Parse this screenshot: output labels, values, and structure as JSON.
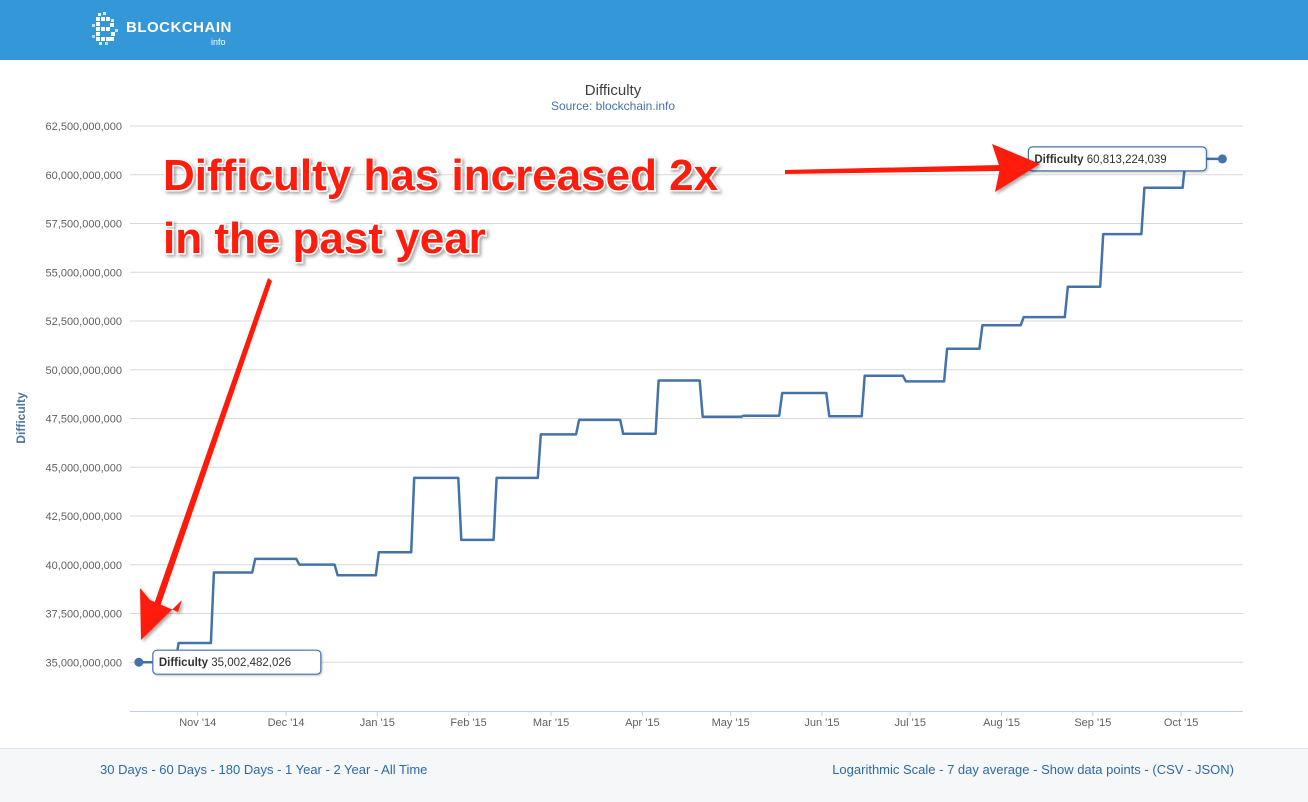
{
  "header": {
    "logo_text": "BLOCKCHAIN",
    "logo_sub": "info"
  },
  "colors": {
    "header_bg": "#3498d8",
    "series": "#4572a7",
    "annotation": "#ff1a0a"
  },
  "chart_data": {
    "type": "line",
    "title": "Difficulty",
    "subtitle": "Source: blockchain.info",
    "ylabel": "Difficulty",
    "xlabel": "",
    "ylim": [
      32500000000,
      62500000000
    ],
    "yticks": [
      35000000000,
      37500000000,
      40000000000,
      42500000000,
      45000000000,
      47500000000,
      50000000000,
      52500000000,
      55000000000,
      57500000000,
      60000000000,
      62500000000
    ],
    "ytick_labels": [
      "35,000,000,000",
      "37,500,000,000",
      "40,000,000,000",
      "42,500,000,000",
      "45,000,000,000",
      "47,500,000,000",
      "50,000,000,000",
      "52,500,000,000",
      "55,000,000,000",
      "57,500,000,000",
      "60,000,000,000",
      "62,500,000,000"
    ],
    "xlim": [
      "2014-10-09",
      "2015-10-22"
    ],
    "xticks": [
      "2014-11-01",
      "2014-12-01",
      "2015-01-01",
      "2015-02-01",
      "2015-03-01",
      "2015-04-01",
      "2015-05-01",
      "2015-06-01",
      "2015-07-01",
      "2015-08-01",
      "2015-09-01",
      "2015-10-01"
    ],
    "xtick_labels": [
      "Nov '14",
      "Dec '14",
      "Jan '15",
      "Feb '15",
      "Mar '15",
      "Apr '15",
      "May '15",
      "Jun '15",
      "Jul '15",
      "Aug '15",
      "Sep '15",
      "Oct '15"
    ],
    "grid": true,
    "series": [
      {
        "name": "Difficulty",
        "step": true,
        "points": [
          [
            "2014-10-12",
            35002482026
          ],
          [
            "2014-10-25",
            35985640265
          ],
          [
            "2014-11-06",
            39603666252
          ],
          [
            "2014-11-20",
            40300030238
          ],
          [
            "2014-12-05",
            40007470271
          ],
          [
            "2014-12-18",
            39457671307
          ],
          [
            "2015-01-01",
            40640955016
          ],
          [
            "2015-01-13",
            44455415962
          ],
          [
            "2015-01-29",
            41272873894
          ],
          [
            "2015-02-10",
            44455415962
          ],
          [
            "2015-02-25",
            46684376316
          ],
          [
            "2015-03-10",
            47427554950
          ],
          [
            "2015-03-25",
            46717549645
          ],
          [
            "2015-04-06",
            49446390688
          ],
          [
            "2015-04-21",
            47589591153
          ],
          [
            "2015-05-05",
            47643398017
          ],
          [
            "2015-05-18",
            48807487245
          ],
          [
            "2015-06-03",
            47610564513
          ],
          [
            "2015-06-15",
            49692386355
          ],
          [
            "2015-06-29",
            49402014931
          ],
          [
            "2015-07-13",
            51076366303
          ],
          [
            "2015-07-25",
            52278304845
          ],
          [
            "2015-08-08",
            52699842409
          ],
          [
            "2015-08-23",
            54256630328
          ],
          [
            "2015-09-04",
            56957648455
          ],
          [
            "2015-09-18",
            59335351234
          ],
          [
            "2015-10-02",
            60813224039
          ],
          [
            "2015-10-15",
            60813224039
          ]
        ]
      }
    ],
    "tooltips": [
      {
        "label": "Difficulty",
        "value": "35,002,482,026"
      },
      {
        "label": "Difficulty",
        "value": "60,813,224,039"
      }
    ],
    "annotation": {
      "line1": "Difficulty has increased 2x",
      "line2": "in the past year"
    }
  },
  "footer": {
    "left": [
      "30 Days",
      "60 Days",
      "180 Days",
      "1 Year",
      "2 Year",
      "All Time"
    ],
    "log_scale": "Logarithmic Scale",
    "seven_day": "7 day average",
    "show_points": "Show data points",
    "csv": "CSV",
    "json": "JSON"
  }
}
